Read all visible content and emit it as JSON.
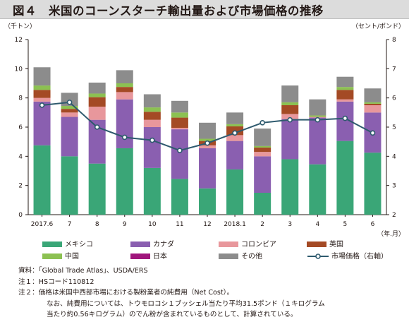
{
  "title": "図４　米国のコーンスターチ輸出量および市場価格の推移",
  "left_unit": "（千トン）",
  "right_unit": "（セント/ポンド）",
  "x_unit": "（年.月）",
  "legend_labels": [
    "メキシコ",
    "カナダ",
    "コロンビア",
    "英国",
    "中国",
    "日本",
    "その他",
    "市場価格（右軸）"
  ],
  "notes": [
    "資料：「Global Trade Atlas」、USDA/ERS",
    "注１：HSコード110812",
    "注２：価格は米国中西部市場における製粉業者の純費用（Net Cost）。",
    "なお、純費用については、トウモロコシ１ブッシェル当たり平均31.5ポンド（１キログラム",
    "当たり約0.56キログラム）のでん粉が含まれているものとして、計算されている。"
  ],
  "colors": {
    "メキシコ": "#3aa677",
    "カナダ": "#8a5fb0",
    "コロンビア": "#e8979c",
    "英国": "#a44a25",
    "中国": "#8cc152",
    "日本": "#a0167c",
    "その他": "#8c8c8c",
    "市場価格（右軸）": "#2e5a6e"
  },
  "chart_data": {
    "type": "bar",
    "stacked": true,
    "title": "図４　米国のコーンスターチ輸出量および市場価格の推移",
    "categories": [
      "2017.6",
      "7",
      "8",
      "9",
      "10",
      "11",
      "12",
      "2018.1",
      "2",
      "3",
      "4",
      "5",
      "6"
    ],
    "ylim": [
      0,
      12
    ],
    "y_ticks": [
      0,
      2,
      4,
      6,
      8,
      10,
      12
    ],
    "y2lim": [
      2,
      8
    ],
    "y2_ticks": [
      2,
      3,
      4,
      5,
      6,
      7,
      8
    ],
    "ylabel": "（千トン）",
    "y2label": "（セント/ポンド）",
    "xlabel": "（年.月）",
    "grid": false,
    "legend_position": "bottom",
    "series": [
      {
        "name": "メキシコ",
        "values": [
          4.75,
          4.0,
          3.5,
          4.55,
          3.2,
          2.45,
          1.8,
          3.1,
          1.5,
          3.8,
          3.45,
          5.05,
          4.25
        ]
      },
      {
        "name": "カナダ",
        "values": [
          3.0,
          2.7,
          3.0,
          3.35,
          2.8,
          3.4,
          2.75,
          1.95,
          2.5,
          2.75,
          3.2,
          2.7,
          2.75
        ]
      },
      {
        "name": "コロンビア",
        "values": [
          0.25,
          0.3,
          0.9,
          0.5,
          0.5,
          0.1,
          0.2,
          0.4,
          0.3,
          0.35,
          0.05,
          0.15,
          0.5
        ]
      },
      {
        "name": "英国",
        "values": [
          0.55,
          0.25,
          0.65,
          0.35,
          0.55,
          0.7,
          0.3,
          0.6,
          0.3,
          0.6,
          0.0,
          0.65,
          0.1
        ]
      },
      {
        "name": "中国",
        "values": [
          0.3,
          0.2,
          0.25,
          0.25,
          0.3,
          0.35,
          0.15,
          0.15,
          0.1,
          0.2,
          0.1,
          0.2,
          0.1
        ]
      },
      {
        "name": "日本",
        "values": [
          0.0,
          0.0,
          0.0,
          0.0,
          0.0,
          0.0,
          0.0,
          0.0,
          0.0,
          0.0,
          0.0,
          0.0,
          0.0
        ]
      },
      {
        "name": "その他",
        "values": [
          1.25,
          0.9,
          0.75,
          0.9,
          0.9,
          0.8,
          1.1,
          0.8,
          1.2,
          1.15,
          1.1,
          0.7,
          0.95
        ]
      },
      {
        "name": "市場価格（右軸）",
        "axis": "right",
        "type": "line",
        "values": [
          5.75,
          5.85,
          5.0,
          4.65,
          4.55,
          4.2,
          4.45,
          4.8,
          5.15,
          5.25,
          5.25,
          5.3,
          4.8
        ]
      }
    ]
  }
}
